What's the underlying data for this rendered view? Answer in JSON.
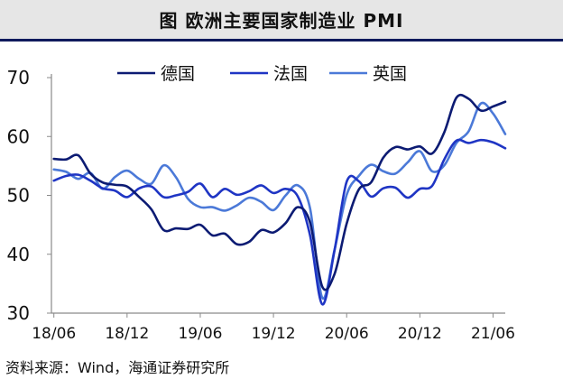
{
  "title": "图  欧洲主要国家制造业 PMI",
  "source": {
    "label": "资料来源：",
    "text": "Wind，海通证券研究所"
  },
  "colors": {
    "germany": "#0c1b73",
    "france": "#1f35c4",
    "uk": "#4b79d8",
    "axis": "#8a8a8a",
    "title_bg": "#e6e6e6",
    "title_rule": "#0f1a5c"
  },
  "chart_data": {
    "type": "line",
    "title": "",
    "xlabel": "",
    "ylabel": "",
    "xlim": [
      "2018-06",
      "2021-07"
    ],
    "ylim": [
      30,
      70
    ],
    "yticks": [
      30,
      40,
      50,
      60,
      70
    ],
    "xticks": [
      "18/06",
      "18/12",
      "19/06",
      "19/12",
      "20/06",
      "20/12",
      "21/06"
    ],
    "x": [
      "2018-06",
      "2018-07",
      "2018-08",
      "2018-09",
      "2018-10",
      "2018-11",
      "2018-12",
      "2019-01",
      "2019-02",
      "2019-03",
      "2019-04",
      "2019-05",
      "2019-06",
      "2019-07",
      "2019-08",
      "2019-09",
      "2019-10",
      "2019-11",
      "2019-12",
      "2020-01",
      "2020-02",
      "2020-03",
      "2020-04",
      "2020-05",
      "2020-06",
      "2020-07",
      "2020-08",
      "2020-09",
      "2020-10",
      "2020-11",
      "2020-12",
      "2021-01",
      "2021-02",
      "2021-03",
      "2021-04",
      "2021-05",
      "2021-06",
      "2021-07"
    ],
    "grid": false,
    "legend": "top-center",
    "series": [
      {
        "name": "德国",
        "color_key": "germany",
        "values": [
          56.2,
          56.1,
          56.8,
          53.7,
          52.2,
          51.8,
          51.5,
          49.7,
          47.6,
          44.1,
          44.4,
          44.3,
          45.0,
          43.2,
          43.5,
          41.7,
          42.1,
          44.1,
          43.7,
          45.3,
          48.0,
          45.4,
          34.5,
          36.6,
          45.2,
          51.0,
          52.2,
          56.4,
          58.2,
          57.8,
          58.3,
          57.1,
          60.7,
          66.6,
          66.4,
          64.4,
          65.1,
          65.9
        ]
      },
      {
        "name": "法国",
        "color_key": "france",
        "values": [
          52.5,
          53.3,
          53.5,
          52.5,
          51.2,
          50.8,
          49.7,
          51.2,
          51.5,
          49.7,
          50.0,
          50.6,
          52.0,
          49.7,
          51.1,
          50.1,
          50.7,
          51.7,
          50.4,
          51.1,
          49.8,
          43.2,
          31.5,
          40.6,
          52.3,
          52.4,
          49.8,
          51.2,
          51.3,
          49.6,
          51.1,
          51.6,
          56.1,
          59.3,
          58.9,
          59.4,
          59.0,
          58.0
        ]
      },
      {
        "name": "英国",
        "color_key": "uk",
        "values": [
          54.4,
          54.0,
          52.8,
          53.8,
          51.1,
          53.1,
          54.2,
          52.8,
          52.0,
          55.1,
          53.1,
          49.4,
          48.0,
          48.0,
          47.4,
          48.3,
          49.6,
          48.9,
          47.5,
          50.0,
          51.7,
          47.8,
          32.6,
          40.7,
          50.1,
          53.3,
          55.2,
          54.1,
          53.7,
          55.6,
          57.5,
          54.1,
          55.1,
          58.9,
          60.9,
          65.6,
          63.9,
          60.4
        ]
      }
    ]
  }
}
